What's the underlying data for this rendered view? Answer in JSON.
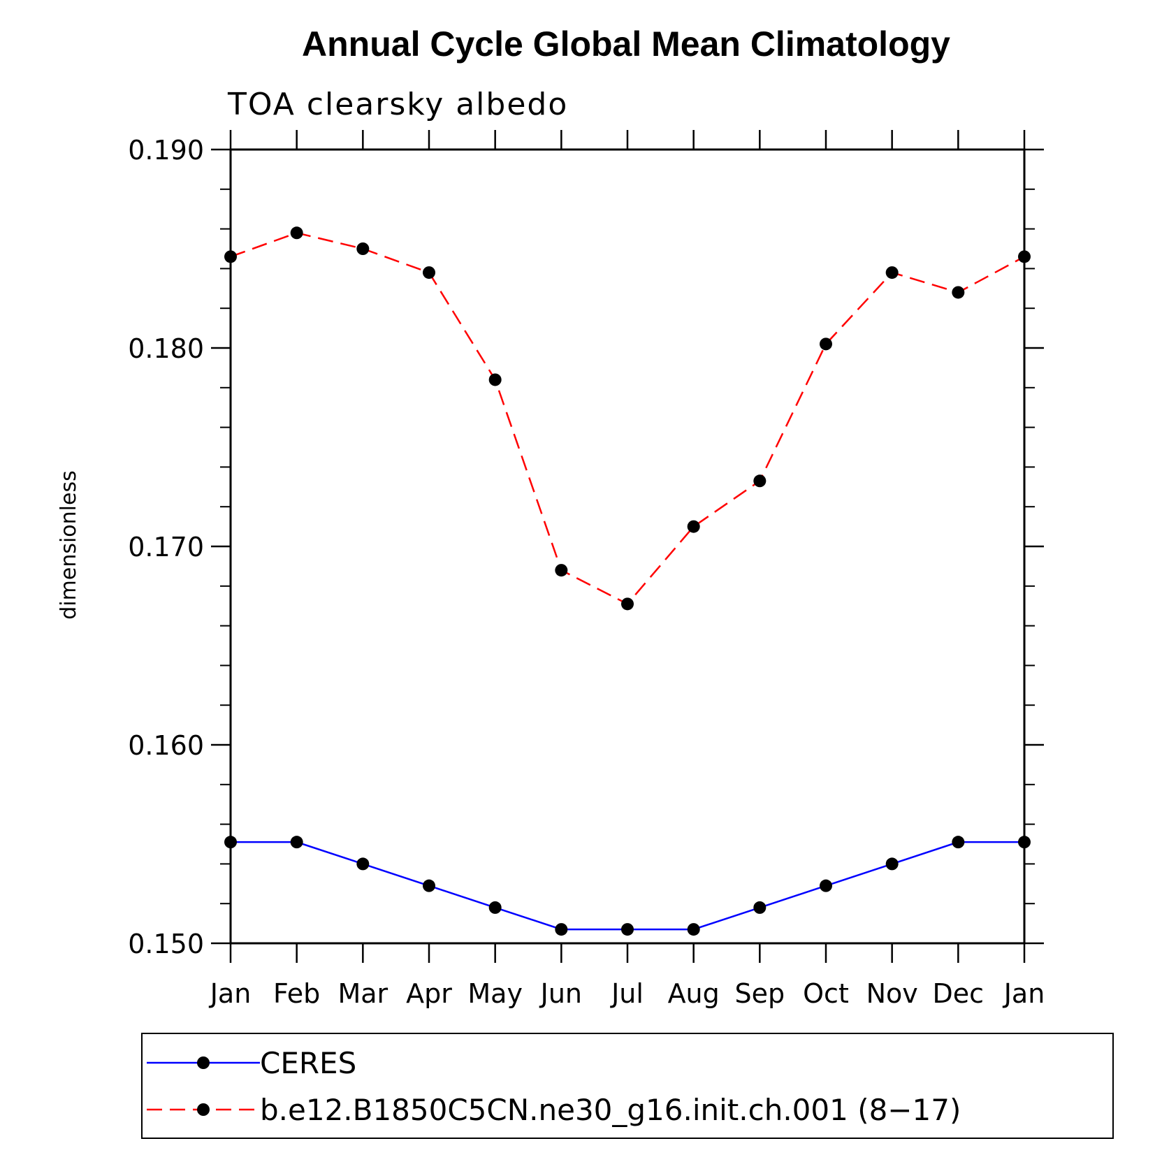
{
  "chart_data": {
    "type": "line",
    "title": "Annual Cycle Global Mean Climatology",
    "subtitle": "TOA clearsky albedo",
    "xlabel": "",
    "ylabel": "dimensionless",
    "categories": [
      "Jan",
      "Feb",
      "Mar",
      "Apr",
      "May",
      "Jun",
      "Jul",
      "Aug",
      "Sep",
      "Oct",
      "Nov",
      "Dec",
      "Jan"
    ],
    "ylim": [
      0.15,
      0.19
    ],
    "yticks": [
      "0.150",
      "0.160",
      "0.170",
      "0.180",
      "0.190"
    ],
    "grid": false,
    "legend_position": "bottom",
    "series": [
      {
        "name": "CERES",
        "color": "#0000ff",
        "dash": "solid",
        "marker": "filled-circle",
        "values": [
          0.1551,
          0.1551,
          0.154,
          0.1529,
          0.1518,
          0.1507,
          0.1507,
          0.1507,
          0.1518,
          0.1529,
          0.154,
          0.1551,
          0.1551
        ]
      },
      {
        "name": "b.e12.B1850C5CN.ne30_g16.init.ch.001 (8−17)",
        "color": "#ff0000",
        "dash": "dashed",
        "marker": "filled-circle",
        "values": [
          0.1846,
          0.1858,
          0.185,
          0.1838,
          0.1784,
          0.1688,
          0.1671,
          0.171,
          0.1733,
          0.1802,
          0.1838,
          0.1828,
          0.1846
        ]
      }
    ]
  }
}
